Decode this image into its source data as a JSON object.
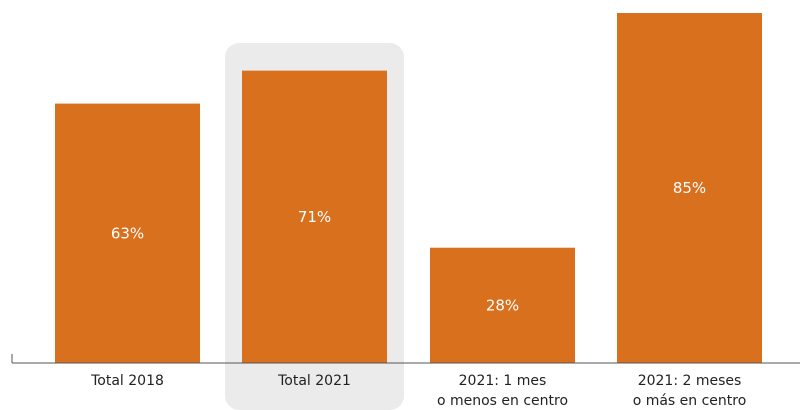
{
  "chart_data": {
    "type": "bar",
    "categories": [
      [
        "Total 2018"
      ],
      [
        "Total 2021"
      ],
      [
        "2021: 1 mes",
        "o menos en centro"
      ],
      [
        "2021: 2 meses",
        "o más en centro"
      ]
    ],
    "values": [
      63,
      71,
      28,
      85
    ],
    "value_labels": [
      "63%",
      "71%",
      "28%",
      "85%"
    ],
    "highlighted_category_index": 1,
    "title": "",
    "xlabel": "",
    "ylabel": "",
    "ylim": [
      0,
      85
    ],
    "grid": false,
    "legend": "none",
    "colors": {
      "bar": "#D9701E",
      "highlight_background": "#EBEBEB",
      "axis": "#555555",
      "value_label": "#FFFFFF",
      "tick_label": "#222222"
    }
  }
}
